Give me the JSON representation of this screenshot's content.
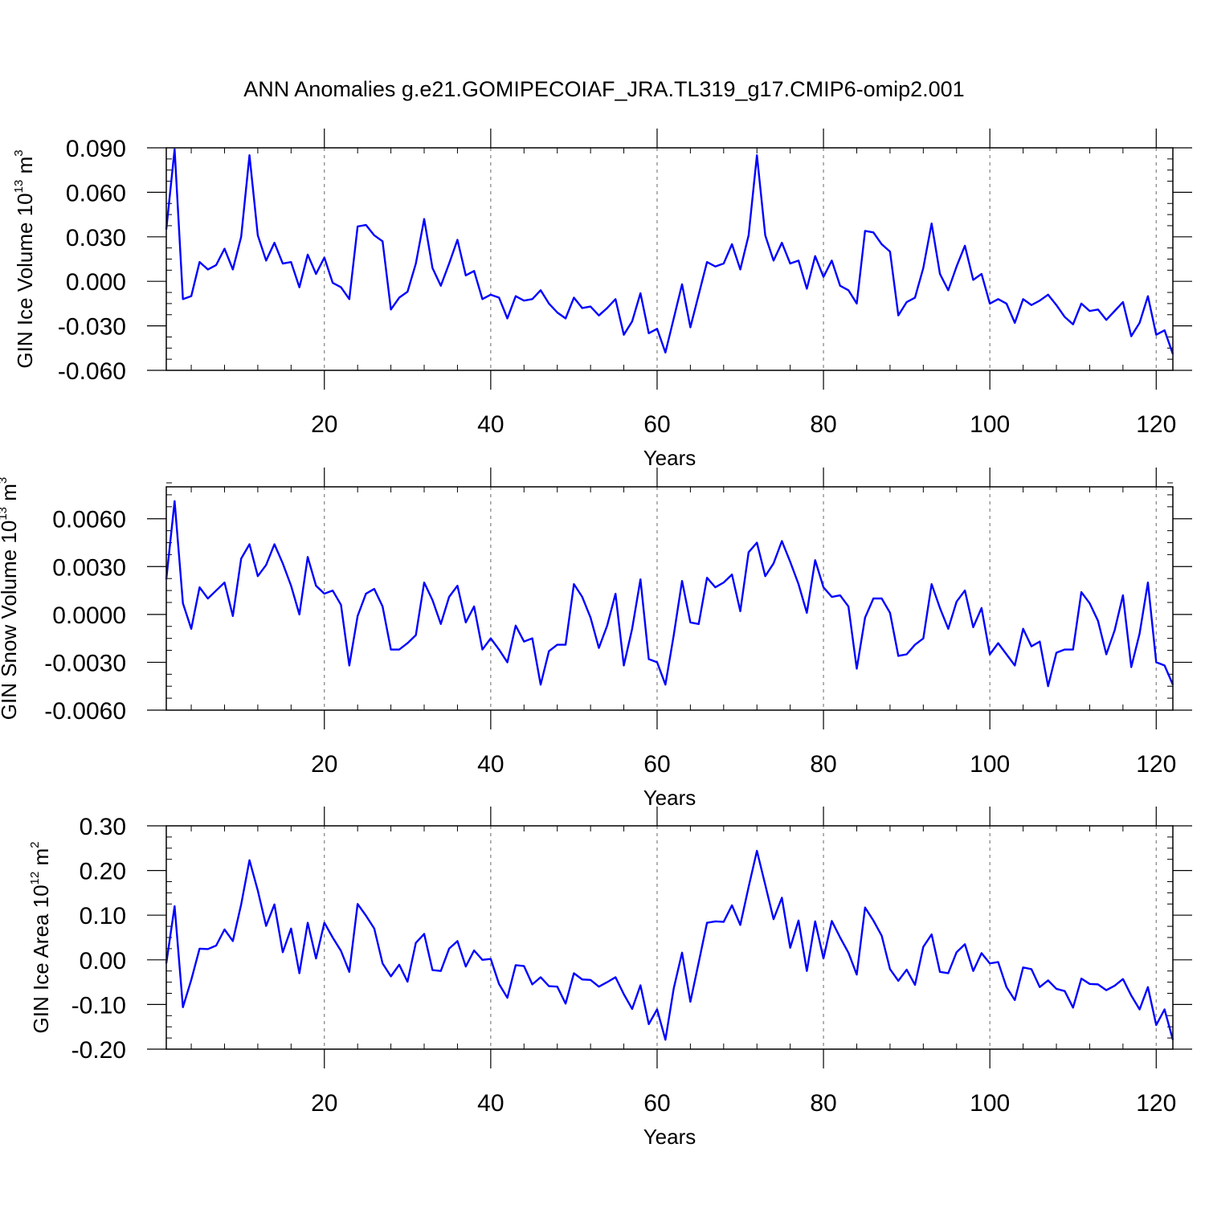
{
  "figure": {
    "title": "ANN Anomalies g.e21.GOMIPECOIAF_JRA.TL319_g17.CMIP6-omip2.001"
  },
  "colors": {
    "line": "#0000ff",
    "axes": "#000000",
    "grid": "#808080"
  },
  "chart_data": [
    {
      "type": "line",
      "title": "ANN Anomalies g.e21.GOMIPECOIAF_JRA.TL319_g17.CMIP6-omip2.001",
      "xlabel": "Years",
      "ylabel": "GIN Ice Volume 10^13 m^3",
      "ylabel_parts": {
        "base": "GIN Ice Volume 10",
        "exp1": "13",
        "mid": " m",
        "exp2": "3"
      },
      "xlim": [
        1,
        122
      ],
      "ylim": [
        -0.06,
        0.09
      ],
      "xticks": [
        20,
        40,
        60,
        80,
        100,
        120
      ],
      "xtick_labels": [
        "20",
        "40",
        "60",
        "80",
        "100",
        "120"
      ],
      "yticks": [
        -0.06,
        -0.03,
        0.0,
        0.03,
        0.06,
        0.09
      ],
      "ytick_labels": [
        "-0.060",
        "-0.030",
        "0.000",
        "0.030",
        "0.060",
        "0.090"
      ],
      "x_minor_step": 4,
      "y_minor_step": 0.0075,
      "grid": "vertical dashed at major x ticks",
      "values": [
        0.035,
        0.089,
        -0.012,
        -0.01,
        0.013,
        0.008,
        0.011,
        0.022,
        0.008,
        0.03,
        0.085,
        0.031,
        0.014,
        0.026,
        0.012,
        0.013,
        -0.004,
        0.018,
        0.005,
        0.016,
        -0.001,
        -0.004,
        -0.012,
        0.037,
        0.038,
        0.031,
        0.027,
        -0.019,
        -0.011,
        -0.007,
        0.012,
        0.042,
        0.009,
        -0.003,
        0.012,
        0.028,
        0.004,
        0.007,
        -0.012,
        -0.009,
        -0.011,
        -0.025,
        -0.01,
        -0.013,
        -0.012,
        -0.006,
        -0.015,
        -0.021,
        -0.025,
        -0.011,
        -0.018,
        -0.017,
        -0.023,
        -0.018,
        -0.012,
        -0.036,
        -0.027,
        -0.008,
        -0.035,
        -0.032,
        -0.048,
        -0.025,
        -0.002,
        -0.031,
        -0.009,
        0.013,
        0.01,
        0.012,
        0.025,
        0.008,
        0.031,
        0.085,
        0.031,
        0.014,
        0.026,
        0.012,
        0.014,
        -0.005,
        0.017,
        0.003,
        0.014,
        -0.003,
        -0.006,
        -0.015,
        0.034,
        0.033,
        0.025,
        0.02,
        -0.023,
        -0.014,
        -0.011,
        0.009,
        0.039,
        0.005,
        -0.006,
        0.01,
        0.024,
        0.001,
        0.005,
        -0.015,
        -0.012,
        -0.015,
        -0.028,
        -0.012,
        -0.016,
        -0.013,
        -0.009,
        -0.016,
        -0.024,
        -0.029,
        -0.015,
        -0.02,
        -0.019,
        -0.026,
        -0.02,
        -0.014,
        -0.037,
        -0.028,
        -0.01,
        -0.036,
        -0.033,
        -0.049
      ]
    },
    {
      "type": "line",
      "xlabel": "Years",
      "ylabel": "GIN Snow Volume 10^13 m^3",
      "ylabel_parts": {
        "base": "GIN Snow Volume 10",
        "exp1": "13",
        "mid": " m",
        "exp2": "3"
      },
      "xlim": [
        1,
        122
      ],
      "ylim": [
        -0.006,
        0.008
      ],
      "xticks": [
        20,
        40,
        60,
        80,
        100,
        120
      ],
      "xtick_labels": [
        "20",
        "40",
        "60",
        "80",
        "100",
        "120"
      ],
      "yticks": [
        -0.006,
        -0.003,
        0.0,
        0.003,
        0.006
      ],
      "ytick_labels": [
        "-0.0060",
        "-0.0030",
        "0.0000",
        "0.0030",
        "0.0060"
      ],
      "x_minor_step": 4,
      "y_minor_step": 0.00075,
      "grid": "vertical dashed at major x ticks",
      "values": [
        0.0022,
        0.0071,
        0.0007,
        -0.0009,
        0.0017,
        0.001,
        0.0015,
        0.002,
        -0.0001,
        0.0035,
        0.0044,
        0.0024,
        0.0031,
        0.0044,
        0.0032,
        0.0018,
        0.0,
        0.0036,
        0.0018,
        0.0013,
        0.0015,
        0.0006,
        -0.0032,
        -0.0001,
        0.0013,
        0.0016,
        0.0005,
        -0.0022,
        -0.0022,
        -0.0018,
        -0.0013,
        0.002,
        0.0009,
        -0.0006,
        0.0011,
        0.0018,
        -0.0005,
        0.0005,
        -0.0022,
        -0.0015,
        -0.0022,
        -0.003,
        -0.0007,
        -0.0017,
        -0.0015,
        -0.0044,
        -0.0023,
        -0.0019,
        -0.0019,
        0.0019,
        0.0011,
        -0.0002,
        -0.0021,
        -0.0007,
        0.0013,
        -0.0032,
        -0.0009,
        0.0022,
        -0.0028,
        -0.003,
        -0.0044,
        -0.0013,
        0.0021,
        -0.0005,
        -0.0006,
        0.0023,
        0.0017,
        0.002,
        0.0025,
        0.0002,
        0.0039,
        0.0045,
        0.0024,
        0.0032,
        0.0046,
        0.0033,
        0.0019,
        0.0001,
        0.0034,
        0.0017,
        0.0011,
        0.0012,
        0.0005,
        -0.0034,
        -0.0002,
        0.001,
        0.001,
        0.0001,
        -0.0026,
        -0.0025,
        -0.0019,
        -0.0015,
        0.0019,
        0.0004,
        -0.0009,
        0.0008,
        0.0015,
        -0.0008,
        0.0004,
        -0.0025,
        -0.0018,
        -0.0025,
        -0.0032,
        -0.0009,
        -0.002,
        -0.0017,
        -0.0045,
        -0.0024,
        -0.0022,
        -0.0022,
        0.0014,
        0.0007,
        -0.0004,
        -0.0025,
        -0.001,
        0.0012,
        -0.0033,
        -0.0012,
        0.002,
        -0.003,
        -0.0032,
        -0.0044
      ]
    },
    {
      "type": "line",
      "xlabel": "Years",
      "ylabel": "GIN Ice Area 10^12 m^2",
      "ylabel_parts": {
        "base": "GIN Ice Area 10",
        "exp1": "12",
        "mid": " m",
        "exp2": "2"
      },
      "xlim": [
        1,
        122
      ],
      "ylim": [
        -0.2,
        0.3
      ],
      "xticks": [
        20,
        40,
        60,
        80,
        100,
        120
      ],
      "xtick_labels": [
        "20",
        "40",
        "60",
        "80",
        "100",
        "120"
      ],
      "yticks": [
        -0.2,
        -0.1,
        0.0,
        0.1,
        0.2,
        0.3
      ],
      "ytick_labels": [
        "-0.20",
        "-0.10",
        "0.00",
        "0.10",
        "0.20",
        "0.30"
      ],
      "x_minor_step": 4,
      "y_minor_step": 0.025,
      "grid": "vertical dashed at major x ticks",
      "values": [
        -0.008,
        0.12,
        -0.106,
        -0.045,
        0.025,
        0.024,
        0.032,
        0.068,
        0.042,
        0.124,
        0.223,
        0.155,
        0.076,
        0.124,
        0.017,
        0.07,
        -0.03,
        0.083,
        0.003,
        0.083,
        0.05,
        0.02,
        -0.027,
        0.125,
        0.099,
        0.07,
        -0.008,
        -0.037,
        -0.011,
        -0.049,
        0.038,
        0.058,
        -0.023,
        -0.025,
        0.025,
        0.042,
        -0.015,
        0.021,
        0.0,
        0.002,
        -0.054,
        -0.085,
        -0.012,
        -0.014,
        -0.055,
        -0.039,
        -0.059,
        -0.06,
        -0.098,
        -0.03,
        -0.044,
        -0.045,
        -0.06,
        -0.05,
        -0.039,
        -0.077,
        -0.11,
        -0.057,
        -0.144,
        -0.111,
        -0.179,
        -0.064,
        0.016,
        -0.094,
        -0.006,
        0.083,
        0.086,
        0.085,
        0.122,
        0.078,
        0.163,
        0.244,
        0.168,
        0.091,
        0.139,
        0.027,
        0.088,
        -0.025,
        0.086,
        0.003,
        0.087,
        0.05,
        0.016,
        -0.033,
        0.117,
        0.088,
        0.054,
        -0.021,
        -0.047,
        -0.022,
        -0.056,
        0.029,
        0.057,
        -0.027,
        -0.03,
        0.017,
        0.035,
        -0.025,
        0.015,
        -0.008,
        -0.005,
        -0.061,
        -0.09,
        -0.017,
        -0.021,
        -0.061,
        -0.046,
        -0.065,
        -0.07,
        -0.107,
        -0.042,
        -0.054,
        -0.055,
        -0.068,
        -0.058,
        -0.043,
        -0.08,
        -0.111,
        -0.061,
        -0.146,
        -0.111,
        -0.179
      ]
    }
  ]
}
